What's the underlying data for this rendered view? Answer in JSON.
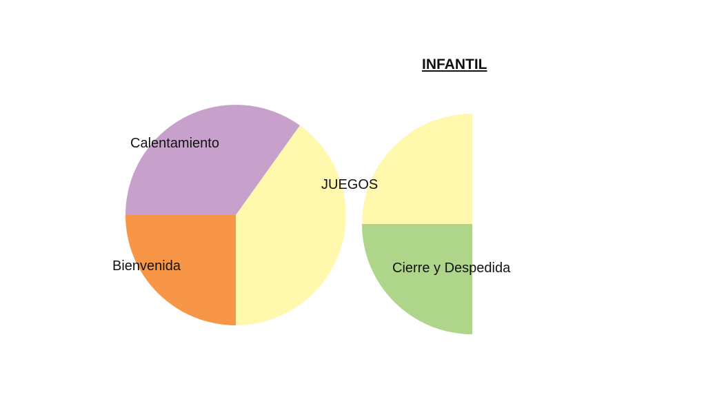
{
  "title": "INFANTIL",
  "sections": [
    {
      "label": "Calentamiento",
      "color": "#c7a0cb"
    },
    {
      "label": "Bienvenida",
      "color": "#f79646"
    },
    {
      "label": "JUEGOS",
      "color": "#fff8ad"
    },
    {
      "label": "Cierre y Despedida",
      "color": "#afd58a"
    }
  ]
}
